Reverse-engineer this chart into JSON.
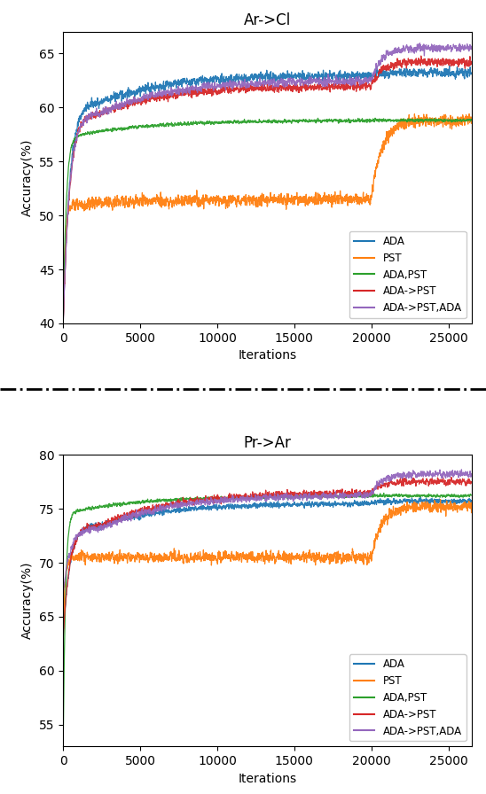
{
  "fig_width": 5.48,
  "fig_height": 8.96,
  "dpi": 100,
  "subplot1": {
    "title": "Ar->Cl",
    "xlabel": "Iterations",
    "ylabel": "Accuracy(%)",
    "ylim": [
      40,
      67
    ],
    "xlim": [
      0,
      26500
    ],
    "yticks": [
      40,
      45,
      50,
      55,
      60,
      65
    ],
    "xticks": [
      0,
      5000,
      10000,
      15000,
      20000,
      25000
    ],
    "legend_loc": "lower right",
    "curves": {
      "ADA": {
        "color": "#1f77b4",
        "phase1_end": 20000,
        "phase1_val": 63.0,
        "phase2_val": 63.2,
        "start_val": 40.0,
        "warmup_end": 2500,
        "warmup_val": 60.5,
        "noise": 0.35
      },
      "PST": {
        "color": "#ff7f0e",
        "phase1_end": 20000,
        "phase1_val": 51.5,
        "phase2_val": 58.8,
        "start_val": 40.0,
        "warmup_end": 700,
        "warmup_val": 51.0,
        "noise": 0.45
      },
      "ADA,PST": {
        "color": "#2ca02c",
        "phase1_end": 20000,
        "phase1_val": 58.8,
        "phase2_val": 58.8,
        "start_val": 40.0,
        "warmup_end": 1200,
        "warmup_val": 57.5,
        "noise": 0.12
      },
      "ADA->PST": {
        "color": "#d62728",
        "phase1_end": 20000,
        "phase1_val": 62.0,
        "phase2_val": 64.2,
        "start_val": 40.0,
        "warmup_end": 2500,
        "warmup_val": 59.5,
        "noise": 0.3
      },
      "ADA->PST,ADA": {
        "color": "#9467bd",
        "phase1_end": 20000,
        "phase1_val": 62.5,
        "phase2_val": 65.5,
        "start_val": 40.0,
        "warmup_end": 2500,
        "warmup_val": 59.5,
        "noise": 0.3
      }
    }
  },
  "subplot2": {
    "title": "Pr->Ar",
    "xlabel": "Iterations",
    "ylabel": "Accuracy(%)",
    "ylim": [
      53,
      80
    ],
    "xlim": [
      0,
      26500
    ],
    "yticks": [
      55,
      60,
      65,
      70,
      75,
      80
    ],
    "xticks": [
      0,
      5000,
      10000,
      15000,
      20000,
      25000
    ],
    "legend_loc": "lower right",
    "curves": {
      "ADA": {
        "color": "#1f77b4",
        "phase1_end": 20000,
        "phase1_val": 75.5,
        "phase2_val": 75.7,
        "start_val": 63.0,
        "warmup_end": 2500,
        "warmup_val": 73.5,
        "noise": 0.2
      },
      "PST": {
        "color": "#ff7f0e",
        "phase1_end": 20000,
        "phase1_val": 70.5,
        "phase2_val": 75.2,
        "start_val": 63.0,
        "warmup_end": 700,
        "warmup_val": 70.5,
        "noise": 0.4
      },
      "ADA,PST": {
        "color": "#2ca02c",
        "phase1_end": 20000,
        "phase1_val": 76.2,
        "phase2_val": 76.2,
        "start_val": 53.0,
        "warmup_end": 900,
        "warmup_val": 74.8,
        "noise": 0.12
      },
      "ADA->PST": {
        "color": "#d62728",
        "phase1_end": 20000,
        "phase1_val": 76.5,
        "phase2_val": 77.5,
        "start_val": 63.0,
        "warmup_end": 2500,
        "warmup_val": 73.5,
        "noise": 0.25
      },
      "ADA->PST,ADA": {
        "color": "#9467bd",
        "phase1_end": 20000,
        "phase1_val": 76.3,
        "phase2_val": 78.2,
        "start_val": 67.0,
        "warmup_end": 2500,
        "warmup_val": 73.2,
        "noise": 0.25
      }
    }
  },
  "separator": {
    "color": "black",
    "linewidth": 2.0,
    "linestyle": "dashdot"
  }
}
